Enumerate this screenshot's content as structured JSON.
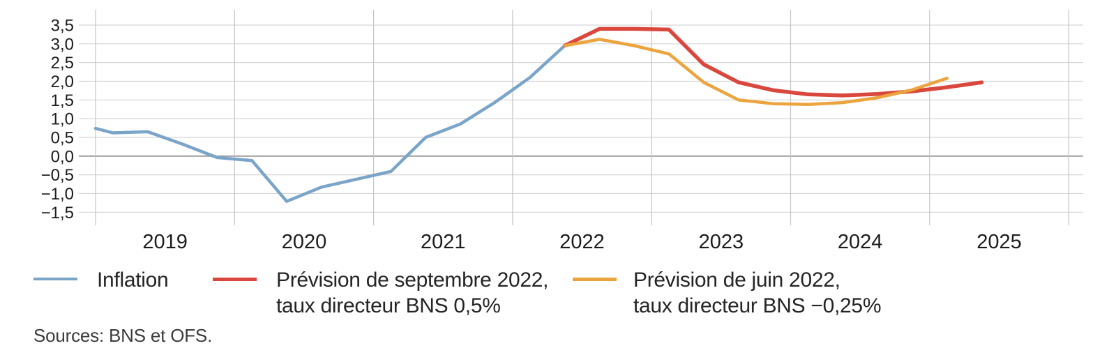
{
  "chart_data": {
    "type": "line",
    "title": "",
    "xlabel": "",
    "ylabel": "",
    "grid": true,
    "legend_position": "bottom",
    "x_axis": {
      "gridline_years": [
        2019,
        2020,
        2021,
        2022,
        2023,
        2024,
        2025,
        2026
      ],
      "year_labels": [
        {
          "value": 2019,
          "label": "2019"
        },
        {
          "value": 2020,
          "label": "2020"
        },
        {
          "value": 2021,
          "label": "2021"
        },
        {
          "value": 2022,
          "label": "2022"
        },
        {
          "value": 2023,
          "label": "2023"
        },
        {
          "value": 2024,
          "label": "2024"
        },
        {
          "value": 2025,
          "label": "2025"
        }
      ],
      "range": [
        2018.88,
        2026.1
      ]
    },
    "y_axis": {
      "ticks": [
        {
          "value": 3.5,
          "label": "3,5"
        },
        {
          "value": 3.0,
          "label": "3,0"
        },
        {
          "value": 2.5,
          "label": "2,5"
        },
        {
          "value": 2.0,
          "label": "2,0"
        },
        {
          "value": 1.5,
          "label": "1,5"
        },
        {
          "value": 1.0,
          "label": "1,0"
        },
        {
          "value": 0.5,
          "label": "0,5"
        },
        {
          "value": 0.0,
          "label": "0,0"
        },
        {
          "value": -0.5,
          "label": "−0,5"
        },
        {
          "value": -1.0,
          "label": "−1,0"
        },
        {
          "value": -1.5,
          "label": "−1,5"
        }
      ],
      "range": [
        -1.9,
        3.9
      ]
    },
    "series": [
      {
        "name": "Inflation",
        "color": "#7ba4c9",
        "stroke_width": 4.5,
        "swatch_height": 4,
        "points": [
          [
            2019.0,
            0.74
          ],
          [
            2019.125,
            0.62
          ],
          [
            2019.375,
            0.65
          ],
          [
            2019.625,
            0.32
          ],
          [
            2019.875,
            -0.04
          ],
          [
            2020.125,
            -0.12
          ],
          [
            2020.375,
            -1.21
          ],
          [
            2020.625,
            -0.83
          ],
          [
            2020.875,
            -0.62
          ],
          [
            2021.125,
            -0.41
          ],
          [
            2021.375,
            0.5
          ],
          [
            2021.625,
            0.86
          ],
          [
            2021.875,
            1.44
          ],
          [
            2022.125,
            2.1
          ],
          [
            2022.375,
            2.95
          ]
        ]
      },
      {
        "name": "Prévision de septembre 2022, taux directeur BNS 0,5%",
        "color": "#d9473d",
        "stroke_width": 5.5,
        "swatch_height": 5,
        "points": [
          [
            2022.375,
            2.95
          ],
          [
            2022.625,
            3.4
          ],
          [
            2022.875,
            3.4
          ],
          [
            2023.125,
            3.38
          ],
          [
            2023.375,
            2.45
          ],
          [
            2023.625,
            1.97
          ],
          [
            2023.875,
            1.76
          ],
          [
            2024.125,
            1.65
          ],
          [
            2024.375,
            1.62
          ],
          [
            2024.625,
            1.66
          ],
          [
            2024.875,
            1.73
          ],
          [
            2025.125,
            1.84
          ],
          [
            2025.375,
            1.97
          ]
        ]
      },
      {
        "name": "Prévision de juin 2022, taux directeur BNS −0,25%",
        "color": "#eca43f",
        "stroke_width": 4.5,
        "swatch_height": 4.5,
        "points": [
          [
            2022.375,
            2.95
          ],
          [
            2022.625,
            3.12
          ],
          [
            2022.875,
            2.95
          ],
          [
            2023.125,
            2.73
          ],
          [
            2023.375,
            1.97
          ],
          [
            2023.625,
            1.5
          ],
          [
            2023.875,
            1.4
          ],
          [
            2024.125,
            1.38
          ],
          [
            2024.375,
            1.43
          ],
          [
            2024.625,
            1.56
          ],
          [
            2024.875,
            1.77
          ],
          [
            2025.125,
            2.08
          ]
        ]
      }
    ],
    "colors": {
      "gridline_horizontal": "#d5d5d5",
      "gridline_vertical": "#c5c5c5",
      "zero_line": "#9a9a9a",
      "tick_text": "#1d1d1d"
    }
  },
  "legend": {
    "items": [
      {
        "line1": "Inflation",
        "line2": ""
      },
      {
        "line1": "Prévision de septembre 2022,",
        "line2": "taux directeur BNS 0,5%"
      },
      {
        "line1": "Prévision de juin 2022,",
        "line2": "taux directeur BNS −0,25%"
      }
    ]
  },
  "footer": {
    "sources": "Sources: BNS et OFS."
  }
}
